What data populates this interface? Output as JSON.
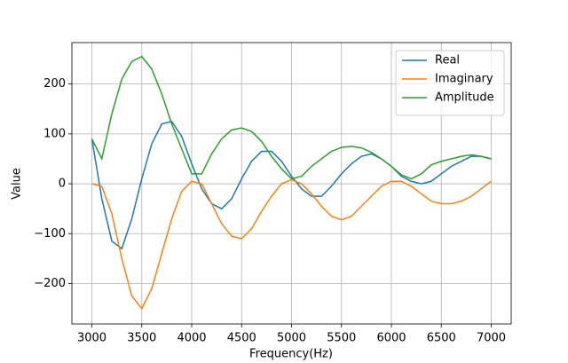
{
  "chart_data": {
    "type": "line",
    "x_label": "Frequency(Hz)",
    "y_label": "Value",
    "x": [
      3000,
      3100,
      3200,
      3300,
      3400,
      3500,
      3600,
      3700,
      3800,
      3900,
      4000,
      4100,
      4200,
      4300,
      4400,
      4500,
      4600,
      4700,
      4800,
      4900,
      5000,
      5100,
      5200,
      5300,
      5400,
      5500,
      5600,
      5700,
      5800,
      5900,
      6000,
      6100,
      6200,
      6300,
      6400,
      6500,
      6600,
      6700,
      6800,
      6900,
      7000
    ],
    "series": [
      {
        "name": "Real",
        "color": "#1f77b4",
        "values": [
          90,
          -30,
          -115,
          -130,
          -70,
          10,
          80,
          120,
          125,
          95,
          40,
          -10,
          -40,
          -50,
          -30,
          10,
          45,
          65,
          65,
          45,
          15,
          -10,
          -25,
          -25,
          -5,
          20,
          40,
          55,
          60,
          50,
          35,
          15,
          5,
          0,
          5,
          20,
          35,
          45,
          55,
          55,
          50
        ]
      },
      {
        "name": "Imaginary",
        "color": "#ff7f0e",
        "values": [
          0,
          -5,
          -60,
          -150,
          -225,
          -250,
          -210,
          -140,
          -70,
          -15,
          5,
          0,
          -40,
          -80,
          -105,
          -110,
          -90,
          -55,
          -25,
          0,
          8,
          0,
          -20,
          -45,
          -65,
          -72,
          -65,
          -45,
          -25,
          -5,
          5,
          5,
          -5,
          -20,
          -35,
          -40,
          -40,
          -35,
          -25,
          -10,
          5
        ]
      },
      {
        "name": "Amplitude",
        "color": "#2ca02c",
        "values": [
          90,
          50,
          140,
          210,
          245,
          255,
          230,
          180,
          120,
          70,
          20,
          20,
          60,
          90,
          108,
          112,
          105,
          85,
          55,
          30,
          10,
          15,
          35,
          50,
          65,
          73,
          75,
          72,
          63,
          50,
          35,
          18,
          10,
          20,
          38,
          45,
          50,
          55,
          58,
          55,
          50
        ]
      }
    ],
    "xlim": [
      2800,
      7200
    ],
    "xticks": [
      3000,
      3500,
      4000,
      4500,
      5000,
      5500,
      6000,
      6500,
      7000
    ],
    "ylim": [
      -281,
      283
    ],
    "yticks": [
      {
        "value": -200,
        "label": "−200"
      },
      {
        "value": -100,
        "label": "−100"
      },
      0,
      100,
      200
    ],
    "grid": true,
    "legend": "upper right"
  }
}
